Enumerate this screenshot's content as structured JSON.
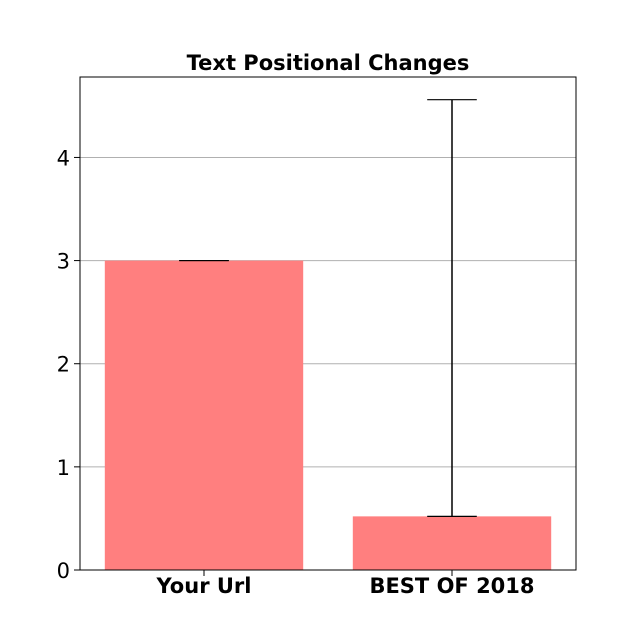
{
  "chart_data": {
    "type": "bar",
    "title": "Text Positional Changes",
    "xlabel": "",
    "ylabel": "",
    "categories": [
      "Your Url",
      "BEST OF 2018"
    ],
    "values": [
      3.0,
      0.52
    ],
    "error_upper": [
      3.0,
      4.56
    ],
    "error_lower": [
      3.0,
      0.52
    ],
    "ylim": [
      0,
      4.78
    ],
    "yticks": [
      0,
      1,
      2,
      3,
      4
    ],
    "ytick_labels": [
      "0",
      "1",
      "2",
      "3",
      "4"
    ],
    "grid": "y",
    "legend": "none"
  },
  "colors": {
    "bar": "#ff7f7f",
    "errorbar": "#000000",
    "grid": "#b0b0b0",
    "axes": "#000000"
  }
}
